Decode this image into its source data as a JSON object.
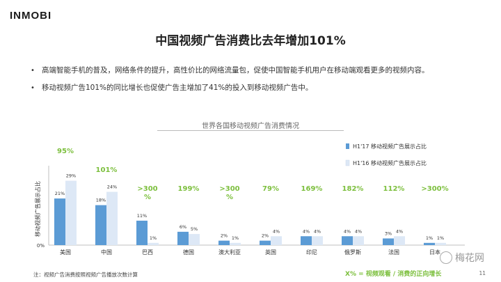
{
  "logo": "INMOBI",
  "title": "中国视频广告消费比去年增加101%",
  "bullets": [
    "高端智能手机的普及，网络条件的提升，高性价比的网络流量包，促使中国智能手机用户在移动端观看更多的视频内容。",
    "移动视频广告101%的同比增长也促使广告主增加了41%的投入到移动视频广告中。"
  ],
  "footnote": "注：视频广告消费按照视频广告播放次数计算",
  "growth_note": "X% = 视频观看 / 消费的正向增长",
  "page_number": "11",
  "watermark": "梅花网",
  "chart_data": {
    "type": "bar",
    "title": "世界各国移动视频广告消费情况",
    "ylabel": "移动视频广告展示占比",
    "y_zero_label": "0%",
    "ylim": [
      0,
      32
    ],
    "grid": false,
    "legend_position": "top-right",
    "categories": [
      "美国",
      "中国",
      "巴西",
      "德国",
      "澳大利亚",
      "英国",
      "印尼",
      "俄罗斯",
      "法国",
      "日本"
    ],
    "series": [
      {
        "name": "H1'17 移动视频广告展示占比",
        "color": "#5b9bd5",
        "values": [
          21,
          18,
          11,
          6,
          2,
          2,
          4,
          4,
          3,
          1
        ],
        "labels": [
          "21%",
          "18%",
          "11%",
          "6%",
          "2%",
          "2%",
          "4%",
          "4%",
          "3%",
          "1%"
        ]
      },
      {
        "name": "H1'16 移动视频广告展示占比",
        "color": "#dde8f6",
        "values": [
          29,
          24,
          1,
          5,
          1,
          4,
          4,
          4,
          4,
          1
        ],
        "labels": [
          "29%",
          "24%",
          "1%",
          "5%",
          "1%",
          "4%",
          "4%",
          "4%",
          "4%",
          "1%"
        ]
      }
    ],
    "growth": [
      "95%",
      "101%",
      ">300%",
      "199%",
      ">300%",
      "79%",
      "169%",
      "182%",
      "112%",
      ">300%"
    ],
    "growth_color": "#7cbf3d"
  }
}
